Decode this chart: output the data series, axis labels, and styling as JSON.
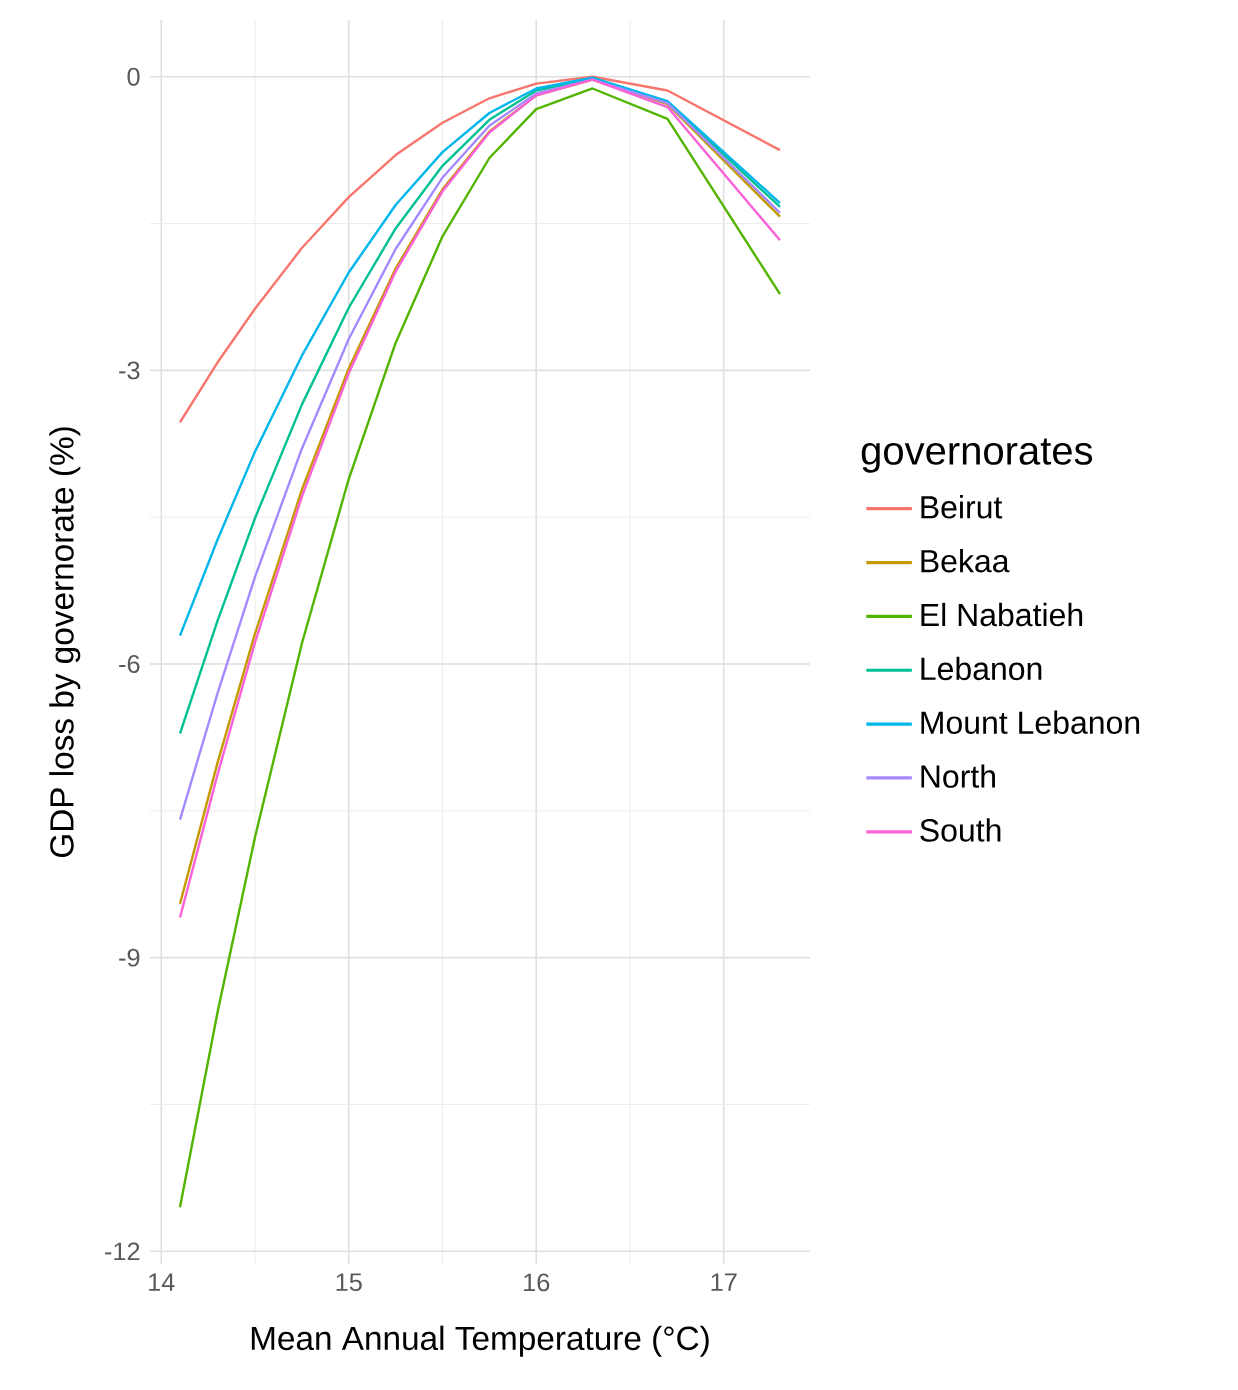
{
  "chart_data": {
    "type": "line",
    "xlabel": "Mean Annual Temperature (°C)",
    "ylabel": "GDP loss by governorate (%)",
    "legend_title": "governorates",
    "x": [
      14.1,
      14.3,
      14.5,
      14.75,
      15.0,
      15.25,
      15.5,
      15.75,
      16.0,
      16.3,
      16.7,
      17.3
    ],
    "series": [
      {
        "name": "Beirut",
        "color": "#F8766D",
        "values": [
          -3.53,
          -2.92,
          -2.37,
          -1.75,
          -1.23,
          -0.8,
          -0.47,
          -0.22,
          -0.07,
          0,
          -0.14,
          -0.75
        ]
      },
      {
        "name": "Bekaa",
        "color": "#C49A00",
        "values": [
          -8.45,
          -7.01,
          -5.69,
          -4.22,
          -2.98,
          -1.96,
          -1.15,
          -0.56,
          -0.19,
          -0.03,
          -0.28,
          -1.43
        ]
      },
      {
        "name": "El Nabatieh",
        "color": "#53B400",
        "values": [
          -11.55,
          -9.56,
          -7.77,
          -5.79,
          -4.11,
          -2.72,
          -1.63,
          -0.83,
          -0.33,
          -0.12,
          -0.43,
          -2.22
        ]
      },
      {
        "name": "Lebanon",
        "color": "#00C094",
        "values": [
          -6.71,
          -5.56,
          -4.51,
          -3.35,
          -2.36,
          -1.55,
          -0.91,
          -0.44,
          -0.14,
          -0.02,
          -0.26,
          -1.33
        ]
      },
      {
        "name": "Mount Lebanon",
        "color": "#00B6EB",
        "values": [
          -5.71,
          -4.73,
          -3.83,
          -2.85,
          -2.0,
          -1.31,
          -0.77,
          -0.37,
          -0.12,
          -0.01,
          -0.25,
          -1.29
        ]
      },
      {
        "name": "North",
        "color": "#A58AFF",
        "values": [
          -7.59,
          -6.3,
          -5.11,
          -3.8,
          -2.68,
          -1.76,
          -1.03,
          -0.5,
          -0.17,
          -0.03,
          -0.27,
          -1.39
        ]
      },
      {
        "name": "South",
        "color": "#FB61D7",
        "values": [
          -8.59,
          -7.13,
          -5.78,
          -4.29,
          -3.03,
          -1.99,
          -1.17,
          -0.57,
          -0.19,
          -0.03,
          -0.31,
          -1.67
        ]
      }
    ],
    "xlim": [
      13.94,
      17.46
    ],
    "ylim": [
      -12.13,
      0.58
    ],
    "xticks": [
      14,
      15,
      16,
      17
    ],
    "yticks": [
      -12,
      -9,
      -6,
      -3,
      0
    ],
    "grid": true,
    "legend": "right",
    "marker": "none",
    "line_style": "solid"
  }
}
